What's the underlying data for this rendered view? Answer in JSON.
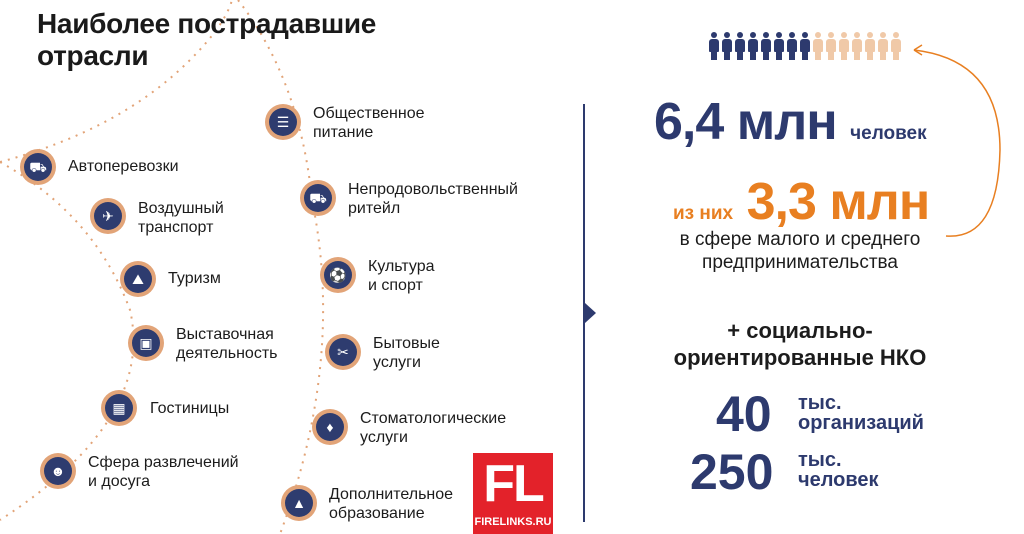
{
  "title_lines": [
    "Наиболее пострадавшие",
    "отрасли"
  ],
  "industries_left": [
    {
      "icon": "truck-icon",
      "glyph": "⛟",
      "lines": [
        "Автоперевозки"
      ]
    },
    {
      "icon": "airplane-icon",
      "glyph": "✈",
      "lines": [
        "Воздушный",
        "транспорт"
      ]
    },
    {
      "icon": "hiker-icon",
      "glyph": "⛰",
      "lines": [
        "Туризм"
      ]
    },
    {
      "icon": "exhibition-icon",
      "glyph": "▣",
      "lines": [
        "Выставочная",
        "деятельность"
      ]
    },
    {
      "icon": "hotel-icon",
      "glyph": "▦",
      "lines": [
        "Гостиницы"
      ]
    },
    {
      "icon": "theater-masks-icon",
      "glyph": "☻",
      "lines": [
        "Сфера развлечений",
        "и досуга"
      ]
    }
  ],
  "industries_right": [
    {
      "icon": "burger-icon",
      "glyph": "☰",
      "lines": [
        "Общественное",
        "питание"
      ]
    },
    {
      "icon": "delivery-truck-icon",
      "glyph": "⛟",
      "lines": [
        "Непродовольственный",
        "ритейл"
      ]
    },
    {
      "icon": "soccer-ball-icon",
      "glyph": "⚽",
      "lines": [
        "Культура",
        "и спорт"
      ]
    },
    {
      "icon": "scissors-comb-icon",
      "glyph": "✂",
      "lines": [
        "Бытовые",
        "услуги"
      ]
    },
    {
      "icon": "tooth-icon",
      "glyph": "♦",
      "lines": [
        "Стоматологические",
        "услуги"
      ]
    },
    {
      "icon": "graduation-cap-icon",
      "glyph": "▲",
      "lines": [
        "Дополнительное",
        "образование"
      ]
    }
  ],
  "stats": {
    "total_number": "6,4 млн",
    "total_unit": "человек",
    "sme_prefix": "из них",
    "sme_number": "3,3 млн",
    "sme_lines": [
      "в сфере малого и среднего",
      "предпринимательства"
    ],
    "nko_lines": [
      "+ социально-",
      "ориентированные НКО"
    ],
    "org_number": "40",
    "org_unit_lines": [
      "тыс.",
      "организаций"
    ],
    "people_number": "250",
    "people_unit_lines": [
      "тыс.",
      "человек"
    ]
  },
  "people_icons": {
    "total": 15,
    "highlighted": 8
  },
  "watermark": {
    "letters": "FL",
    "site": "FIRELINKS.RU"
  },
  "colors": {
    "navy": "#2d3a6e",
    "orange": "#e87f21",
    "peach": "#e2a478",
    "light_peach": "#f0c9a8",
    "watermark_red": "#e3222a"
  }
}
